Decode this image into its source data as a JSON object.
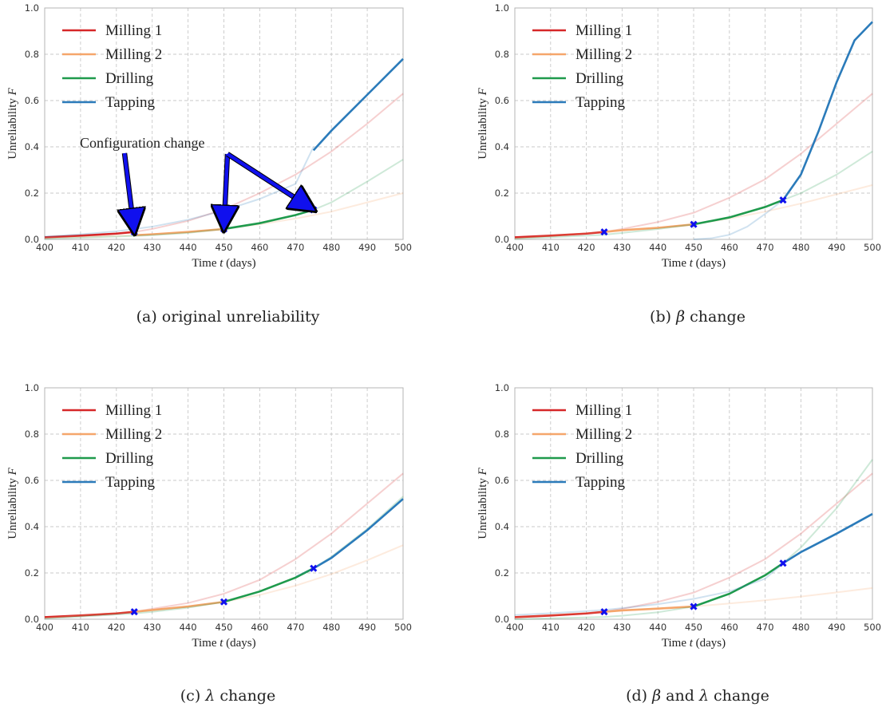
{
  "figure": {
    "x_tick_labels": [
      "400",
      "410",
      "420",
      "430",
      "440",
      "450",
      "460",
      "470",
      "480",
      "490",
      "500"
    ],
    "y_tick_labels": [
      "0.0",
      "0.2",
      "0.4",
      "0.6",
      "0.8",
      "1.0"
    ],
    "colors": {
      "Milling 1": "#d62728",
      "Milling 2": "#f5a66b",
      "Drilling": "#1f9a4c",
      "Tapping": "#2b7bba",
      "marker": "#1010ee",
      "arrow": "#1010ee"
    }
  },
  "chart_data": [
    {
      "type": "line",
      "caption": "(a) original unreliability",
      "xlabel_prefix": "Time ",
      "xlabel_var": "t",
      "xlabel_suffix": " (days)",
      "ylabel_prefix": "Unreliability ",
      "ylabel_var": "F",
      "xlim": [
        400,
        500
      ],
      "ylim": [
        0,
        1
      ],
      "grid": true,
      "legend_position": "top-left",
      "annotation": {
        "text": "Configuration change",
        "points": [
          [
            425,
            0.032
          ],
          [
            450,
            0.045
          ],
          [
            475,
            0.128
          ]
        ]
      },
      "markers": [
        [
          425,
          0.032
        ],
        [
          450,
          0.045
        ],
        [
          475,
          0.128
        ]
      ],
      "series": [
        {
          "name": "Milling 1",
          "x": [
            400,
            410,
            420,
            425,
            430,
            440,
            450,
            460,
            470,
            480,
            490,
            500
          ],
          "y": [
            0.009,
            0.016,
            0.025,
            0.032,
            0.045,
            0.08,
            0.13,
            0.2,
            0.28,
            0.38,
            0.5,
            0.63
          ],
          "active": [
            400,
            425
          ]
        },
        {
          "name": "Milling 2",
          "x": [
            400,
            425,
            430,
            440,
            450,
            460,
            470,
            480,
            490,
            500
          ],
          "y": [
            0.005,
            0.018,
            0.022,
            0.032,
            0.045,
            0.065,
            0.09,
            0.12,
            0.16,
            0.2
          ],
          "active": [
            425,
            450
          ]
        },
        {
          "name": "Drilling",
          "x": [
            400,
            425,
            430,
            440,
            450,
            460,
            470,
            475,
            480,
            490,
            500
          ],
          "y": [
            0.002,
            0.015,
            0.018,
            0.028,
            0.045,
            0.07,
            0.105,
            0.128,
            0.16,
            0.25,
            0.345
          ],
          "active": [
            450,
            475
          ]
        },
        {
          "name": "Tapping",
          "x": [
            400,
            410,
            420,
            425,
            430,
            440,
            450,
            460,
            470,
            475,
            480,
            490,
            500
          ],
          "y": [
            0.012,
            0.022,
            0.035,
            0.045,
            0.055,
            0.085,
            0.125,
            0.175,
            0.24,
            0.4,
            0.47,
            0.625,
            0.78
          ],
          "active": [
            475,
            500
          ],
          "break_at": 475
        }
      ]
    },
    {
      "type": "line",
      "caption_prefix": "(b) ",
      "caption_var": "β",
      "caption_suffix": " change",
      "xlabel_prefix": "Time ",
      "xlabel_var": "t",
      "xlabel_suffix": " (days)",
      "ylabel_prefix": "Unreliability ",
      "ylabel_var": "F",
      "xlim": [
        400,
        500
      ],
      "ylim": [
        0,
        1
      ],
      "grid": true,
      "legend_position": "top-left",
      "markers": [
        [
          425,
          0.032
        ],
        [
          450,
          0.065
        ],
        [
          475,
          0.17
        ]
      ],
      "series": [
        {
          "name": "Milling 1",
          "x": [
            400,
            410,
            420,
            425,
            430,
            440,
            450,
            460,
            470,
            480,
            490,
            500
          ],
          "y": [
            0.009,
            0.016,
            0.025,
            0.032,
            0.045,
            0.075,
            0.115,
            0.18,
            0.26,
            0.37,
            0.5,
            0.63
          ],
          "active": [
            400,
            425
          ]
        },
        {
          "name": "Milling 2",
          "x": [
            400,
            425,
            430,
            440,
            450,
            460,
            470,
            480,
            490,
            500
          ],
          "y": [
            0.004,
            0.032,
            0.04,
            0.05,
            0.065,
            0.09,
            0.12,
            0.155,
            0.195,
            0.235
          ],
          "active": [
            425,
            450
          ]
        },
        {
          "name": "Drilling",
          "x": [
            400,
            425,
            430,
            440,
            450,
            460,
            470,
            475,
            480,
            490,
            500
          ],
          "y": [
            0.002,
            0.02,
            0.028,
            0.045,
            0.065,
            0.095,
            0.14,
            0.17,
            0.2,
            0.28,
            0.38
          ],
          "active": [
            450,
            475
          ]
        },
        {
          "name": "Tapping",
          "x": [
            450,
            455,
            460,
            465,
            470,
            475,
            480,
            485,
            490,
            495,
            500
          ],
          "y": [
            0.0,
            0.005,
            0.02,
            0.055,
            0.11,
            0.17,
            0.28,
            0.47,
            0.68,
            0.86,
            0.94
          ],
          "active": [
            475,
            500
          ]
        }
      ]
    },
    {
      "type": "line",
      "caption_prefix": "(c) ",
      "caption_var": "λ",
      "caption_suffix": " change",
      "xlabel_prefix": "Time ",
      "xlabel_var": "t",
      "xlabel_suffix": " (days)",
      "ylabel_prefix": "Unreliability ",
      "ylabel_var": "F",
      "xlim": [
        400,
        500
      ],
      "ylim": [
        0,
        1
      ],
      "grid": true,
      "legend_position": "top-left",
      "markers": [
        [
          425,
          0.032
        ],
        [
          450,
          0.075
        ],
        [
          475,
          0.22
        ]
      ],
      "series": [
        {
          "name": "Milling 1",
          "x": [
            400,
            410,
            420,
            425,
            430,
            440,
            450,
            460,
            470,
            480,
            490,
            500
          ],
          "y": [
            0.009,
            0.016,
            0.025,
            0.032,
            0.045,
            0.07,
            0.11,
            0.17,
            0.26,
            0.37,
            0.5,
            0.63
          ],
          "active": [
            400,
            425
          ]
        },
        {
          "name": "Milling 2",
          "x": [
            400,
            425,
            430,
            440,
            450,
            460,
            470,
            480,
            490,
            500
          ],
          "y": [
            0.005,
            0.032,
            0.04,
            0.055,
            0.075,
            0.105,
            0.145,
            0.195,
            0.255,
            0.32
          ],
          "active": [
            425,
            450
          ]
        },
        {
          "name": "Drilling",
          "x": [
            400,
            425,
            430,
            440,
            450,
            460,
            470,
            475,
            480,
            490,
            500
          ],
          "y": [
            0.002,
            0.025,
            0.032,
            0.05,
            0.075,
            0.12,
            0.18,
            0.22,
            0.27,
            0.39,
            0.53
          ],
          "active": [
            450,
            475
          ]
        },
        {
          "name": "Tapping",
          "x": [
            470,
            475,
            480,
            490,
            500
          ],
          "y": [
            0.185,
            0.22,
            0.265,
            0.385,
            0.52
          ],
          "active": [
            475,
            500
          ]
        }
      ]
    },
    {
      "type": "line",
      "caption_prefix": "(d) ",
      "caption_var": "β",
      "caption_mid": " and ",
      "caption_var2": "λ",
      "caption_suffix": " change",
      "xlabel_prefix": "Time ",
      "xlabel_var": "t",
      "xlabel_suffix": " (days)",
      "ylabel_prefix": "Unreliability ",
      "ylabel_var": "F",
      "xlim": [
        400,
        500
      ],
      "ylim": [
        0,
        1
      ],
      "grid": true,
      "legend_position": "top-left",
      "markers": [
        [
          425,
          0.032
        ],
        [
          450,
          0.055
        ],
        [
          475,
          0.242
        ]
      ],
      "series": [
        {
          "name": "Milling 1",
          "x": [
            400,
            410,
            420,
            425,
            430,
            440,
            450,
            460,
            470,
            480,
            490,
            500
          ],
          "y": [
            0.009,
            0.016,
            0.025,
            0.032,
            0.045,
            0.075,
            0.115,
            0.18,
            0.26,
            0.37,
            0.5,
            0.63
          ],
          "active": [
            400,
            425
          ]
        },
        {
          "name": "Milling 2",
          "x": [
            400,
            425,
            430,
            440,
            450,
            460,
            470,
            480,
            490,
            500
          ],
          "y": [
            0.008,
            0.032,
            0.038,
            0.046,
            0.055,
            0.068,
            0.082,
            0.098,
            0.116,
            0.135
          ],
          "active": [
            425,
            450
          ]
        },
        {
          "name": "Drilling",
          "x": [
            400,
            425,
            430,
            440,
            450,
            460,
            470,
            475,
            480,
            490,
            500
          ],
          "y": [
            0.0,
            0.01,
            0.015,
            0.03,
            0.055,
            0.11,
            0.19,
            0.242,
            0.31,
            0.48,
            0.69
          ],
          "active": [
            450,
            475
          ]
        },
        {
          "name": "Tapping",
          "x": [
            400,
            410,
            420,
            425,
            430,
            440,
            450,
            460,
            470,
            475,
            480,
            490,
            500
          ],
          "y": [
            0.018,
            0.026,
            0.035,
            0.04,
            0.048,
            0.065,
            0.088,
            0.12,
            0.175,
            0.242,
            0.29,
            0.37,
            0.455
          ],
          "active": [
            475,
            500
          ]
        }
      ]
    }
  ]
}
